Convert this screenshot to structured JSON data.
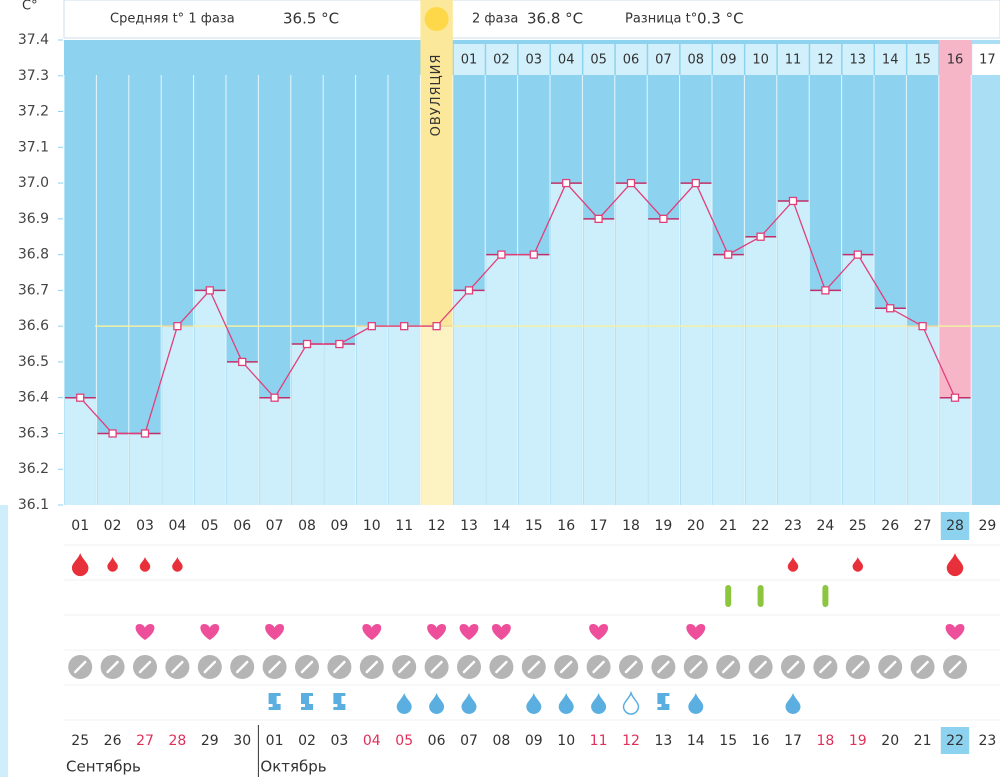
{
  "chart_data": {
    "type": "line",
    "unit": "C°",
    "summary": {
      "phase1_label": "Средняя t° 1 фаза",
      "phase1_value": "36.5 °C",
      "phase2_label": "2 фаза",
      "phase2_value": "36.8 °C",
      "diff_label": "Разница t°",
      "diff_value": "0.3 °C"
    },
    "ovulation_label": "ОВУЛЯЦИЯ",
    "ovulation_index": 11,
    "today_index": 27,
    "categories": [
      "01",
      "02",
      "03",
      "04",
      "05",
      "06",
      "07",
      "08",
      "09",
      "10",
      "11",
      "12",
      "13",
      "14",
      "15",
      "16",
      "17",
      "18",
      "19",
      "20",
      "21",
      "22",
      "23",
      "24",
      "25",
      "26",
      "27",
      "28",
      "29"
    ],
    "series": [
      {
        "name": "t°",
        "color": "#e0407a",
        "values": [
          36.4,
          36.3,
          36.3,
          36.6,
          36.7,
          36.5,
          36.4,
          36.55,
          36.55,
          36.6,
          36.6,
          36.6,
          36.7,
          36.8,
          36.8,
          37.0,
          36.9,
          37.0,
          36.9,
          37.0,
          36.8,
          36.85,
          36.95,
          36.7,
          36.8,
          36.65,
          36.6,
          36.4,
          null
        ]
      }
    ],
    "cover_line": 36.6,
    "phase2_days": [
      "01",
      "02",
      "03",
      "04",
      "05",
      "06",
      "07",
      "08",
      "09",
      "10",
      "11",
      "12",
      "13",
      "14",
      "15",
      "16",
      "17"
    ],
    "ylim": [
      36.1,
      37.4
    ],
    "yticks": [
      36.1,
      36.2,
      36.3,
      36.4,
      36.5,
      36.6,
      36.7,
      36.8,
      36.9,
      {
        "value": 37.0,
        "label": "37.0"
      },
      37.1,
      37.2,
      37.3,
      37.4
    ],
    "bleeding": [
      "heavy",
      "light",
      "light",
      "light",
      null,
      null,
      null,
      null,
      null,
      null,
      null,
      null,
      null,
      null,
      null,
      null,
      null,
      null,
      null,
      null,
      null,
      null,
      "light",
      null,
      "light",
      null,
      null,
      "heavy",
      null
    ],
    "tests": [
      null,
      null,
      null,
      null,
      null,
      null,
      null,
      null,
      null,
      null,
      null,
      null,
      null,
      null,
      null,
      null,
      null,
      null,
      null,
      null,
      "mark",
      "mark",
      null,
      "mark",
      null,
      null,
      null,
      null,
      null
    ],
    "sex": [
      null,
      null,
      "heart",
      null,
      "heart",
      null,
      "heart",
      null,
      null,
      "heart",
      null,
      "heart",
      "heart",
      "heart",
      null,
      null,
      "heart",
      null,
      null,
      "heart",
      null,
      null,
      null,
      null,
      null,
      null,
      null,
      "heart",
      null
    ],
    "notes": [
      "off",
      "off",
      "off",
      "off",
      "off",
      "off",
      "off",
      "off",
      "off",
      "off",
      "off",
      "off",
      "off",
      "off",
      "off",
      "off",
      "off",
      "off",
      "off",
      "off",
      "off",
      "off",
      "off",
      "off",
      "off",
      "off",
      "off",
      "off",
      null
    ],
    "discharge": [
      null,
      null,
      null,
      null,
      null,
      null,
      "sticky",
      "sticky",
      "sticky",
      null,
      "drop",
      "drop",
      "drop",
      null,
      "drop",
      "drop",
      "drop",
      "empty",
      "sticky",
      "drop",
      null,
      null,
      "drop",
      null,
      null,
      null,
      null,
      null,
      null
    ],
    "dates": [
      "25",
      "26",
      "27",
      "28",
      "29",
      "30",
      "01",
      "02",
      "03",
      "04",
      "05",
      "06",
      "07",
      "08",
      "09",
      "10",
      "11",
      "12",
      "13",
      "14",
      "15",
      "16",
      "17",
      "18",
      "19",
      "20",
      "21",
      "22",
      "23"
    ],
    "weekend": [
      false,
      false,
      true,
      true,
      false,
      false,
      false,
      false,
      false,
      true,
      true,
      false,
      false,
      false,
      false,
      false,
      true,
      true,
      false,
      false,
      false,
      false,
      false,
      true,
      true,
      false,
      false,
      false,
      false
    ],
    "months": [
      {
        "name": "Сентябрь",
        "start": 0
      },
      {
        "name": "Октябрь",
        "start": 6
      }
    ]
  }
}
